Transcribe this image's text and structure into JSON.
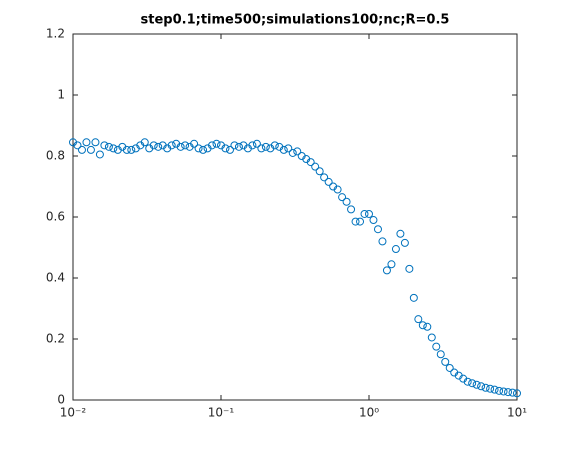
{
  "chart_data": {
    "type": "scatter",
    "title": "step0.1;time500;simulations100;nc;R=0.5",
    "xscale": "log",
    "xlim": [
      0.01,
      10
    ],
    "ylim": [
      0,
      1.2
    ],
    "xticks": [
      {
        "value": 0.01,
        "label": "10⁻²"
      },
      {
        "value": 0.1,
        "label": "10⁻¹"
      },
      {
        "value": 1,
        "label": "10⁰"
      },
      {
        "value": 10,
        "label": "10¹"
      }
    ],
    "yticks": [
      0,
      0.2,
      0.4,
      0.6,
      0.8,
      1,
      1.2
    ],
    "series": [
      {
        "color": "#0072bd",
        "x": [
          0.01,
          0.01072,
          0.0115,
          0.01233,
          0.01322,
          0.01418,
          0.0152,
          0.0163,
          0.01748,
          0.01874,
          0.02009,
          0.02154,
          0.0231,
          0.02477,
          0.02656,
          0.02848,
          0.03054,
          0.03275,
          0.03511,
          0.03765,
          0.04037,
          0.04329,
          0.04642,
          0.04977,
          0.05337,
          0.05722,
          0.06136,
          0.06579,
          0.07055,
          0.07565,
          0.08111,
          0.08697,
          0.09326,
          0.1,
          0.1072,
          0.115,
          0.1233,
          0.1322,
          0.1418,
          0.152,
          0.163,
          0.1748,
          0.1874,
          0.2009,
          0.2154,
          0.231,
          0.2477,
          0.2656,
          0.2848,
          0.3054,
          0.3275,
          0.3511,
          0.3765,
          0.4037,
          0.4329,
          0.4642,
          0.4977,
          0.5337,
          0.5722,
          0.6136,
          0.6579,
          0.7055,
          0.7565,
          0.8111,
          0.8697,
          0.9326,
          1,
          1.072,
          1.15,
          1.233,
          1.322,
          1.418,
          1.52,
          1.63,
          1.748,
          1.874,
          2.009,
          2.154,
          2.31,
          2.477,
          2.656,
          2.848,
          3.054,
          3.275,
          3.511,
          3.765,
          4.037,
          4.329,
          4.642,
          4.977,
          5.337,
          5.722,
          6.136,
          6.579,
          7.055,
          7.565,
          8.111,
          8.697,
          9.326,
          10
        ],
        "values": [
          0.845,
          0.835,
          0.82,
          0.845,
          0.82,
          0.845,
          0.805,
          0.835,
          0.83,
          0.825,
          0.82,
          0.83,
          0.82,
          0.82,
          0.825,
          0.835,
          0.845,
          0.825,
          0.835,
          0.83,
          0.835,
          0.825,
          0.835,
          0.84,
          0.83,
          0.835,
          0.83,
          0.84,
          0.825,
          0.82,
          0.825,
          0.835,
          0.84,
          0.835,
          0.825,
          0.82,
          0.835,
          0.83,
          0.835,
          0.825,
          0.835,
          0.84,
          0.825,
          0.83,
          0.825,
          0.835,
          0.83,
          0.82,
          0.825,
          0.81,
          0.815,
          0.8,
          0.79,
          0.78,
          0.765,
          0.75,
          0.73,
          0.715,
          0.7,
          0.69,
          0.665,
          0.65,
          0.625,
          0.585,
          0.585,
          0.61,
          0.61,
          0.59,
          0.56,
          0.52,
          0.425,
          0.445,
          0.495,
          0.545,
          0.515,
          0.43,
          0.335,
          0.265,
          0.245,
          0.24,
          0.205,
          0.175,
          0.15,
          0.125,
          0.105,
          0.09,
          0.08,
          0.07,
          0.06,
          0.055,
          0.05,
          0.045,
          0.04,
          0.037,
          0.034,
          0.03,
          0.028,
          0.026,
          0.024,
          0.022
        ]
      }
    ]
  }
}
